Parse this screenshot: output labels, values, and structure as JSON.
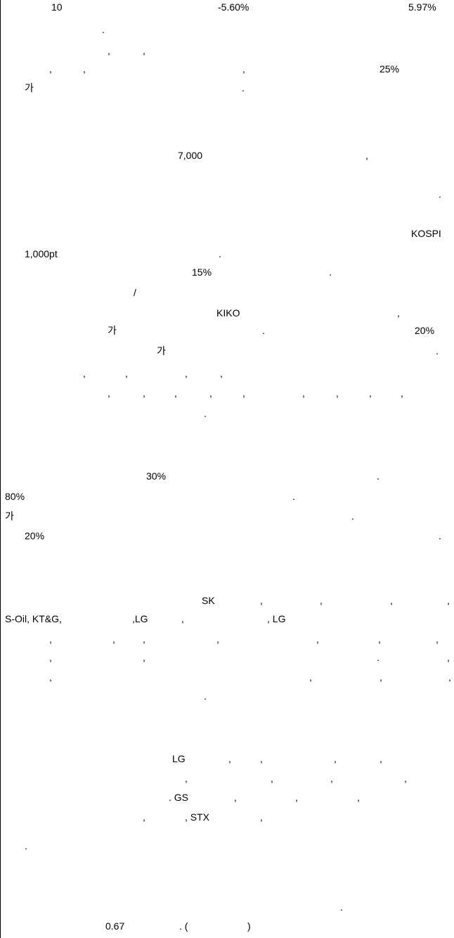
{
  "document": {
    "fragments": [
      "10",
      "-5.60%",
      "5.97%",
      ".",
      ",",
      ",",
      ",",
      ",",
      ",",
      "25%",
      "가",
      ".",
      "7,000",
      ",",
      ".",
      "KOSPI",
      "1,000pt",
      ".",
      "15%",
      ".",
      "/",
      "KIKO",
      ",",
      "가",
      ".",
      "20%",
      "가",
      ".",
      ",",
      ",",
      ",",
      ",",
      ",",
      ",",
      ",",
      ",",
      ",",
      ",",
      ",",
      ",",
      ",",
      ".",
      "30%",
      ".",
      "80%",
      ".",
      "가",
      ".",
      "20%",
      ".",
      "SK",
      ",",
      ",",
      ",",
      ",",
      "S-Oil, KT&G,",
      ",LG",
      ",",
      ", LG",
      ",",
      ",",
      ",",
      ",",
      ",",
      ",",
      ",",
      ",",
      ",",
      ".",
      ",",
      ",",
      ",",
      ",",
      ",",
      ".",
      "LG",
      ",",
      ",",
      ",",
      ",",
      ",",
      ",",
      ",",
      ",",
      ". GS",
      ",",
      ",",
      ",",
      ",",
      ", STX",
      ",",
      ".",
      ".",
      "0.67",
      ". (",
      ")"
    ]
  }
}
